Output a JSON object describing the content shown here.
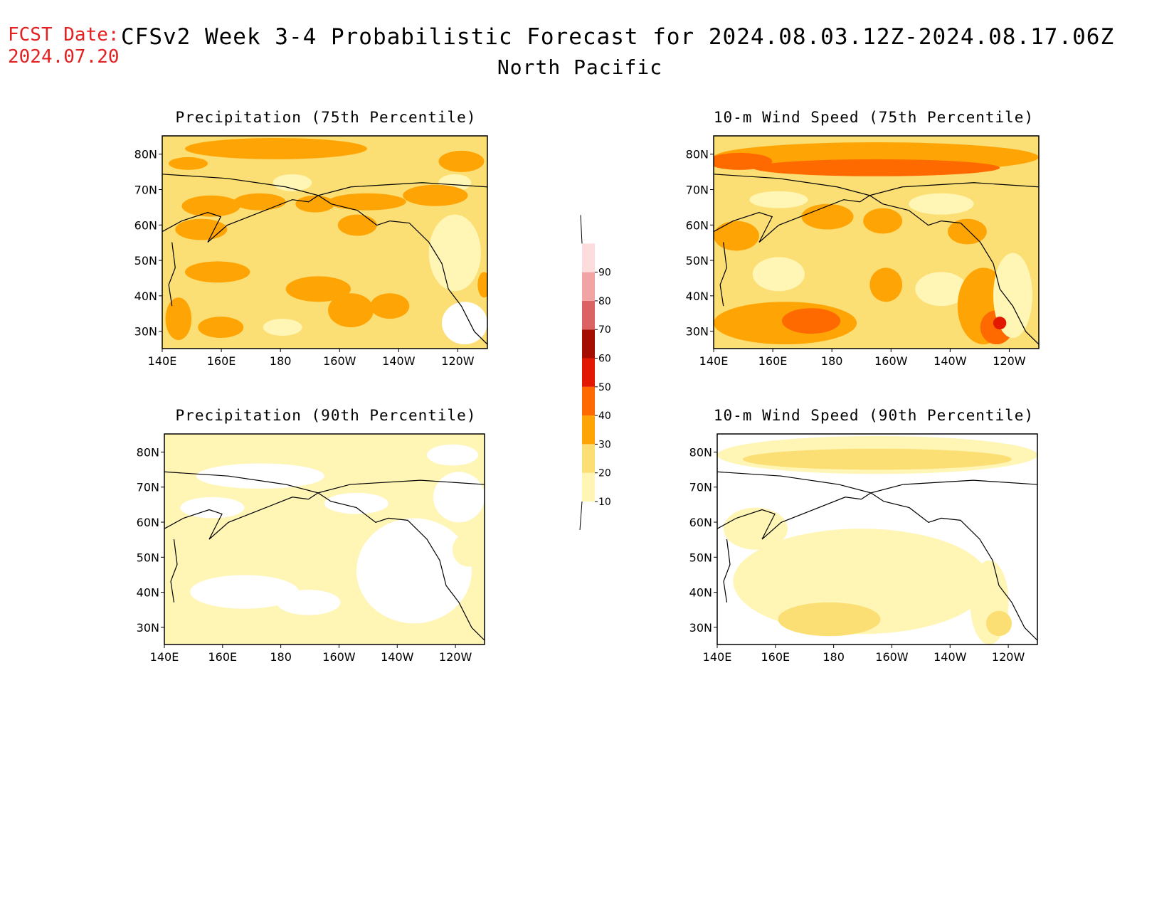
{
  "header": {
    "fcst_label": "FCST Date:",
    "fcst_date": "2024.07.20",
    "title": "CFSv2 Week 3-4 Probabilistic Forecast for 2024.08.03.12Z-2024.08.17.06Z",
    "region": "North Pacific"
  },
  "colors": {
    "c10": "#fff5b5",
    "c20": "#fcdf74",
    "c30": "#ffa405",
    "c40": "#ff6a00",
    "c50": "#e31800",
    "c60": "#a50d00",
    "c70": "#dd6262",
    "c80": "#f2a3a3",
    "c90": "#fcdcdc"
  },
  "colorbar": {
    "levels": [
      "10",
      "20",
      "30",
      "40",
      "50",
      "60",
      "70",
      "80",
      "90"
    ]
  },
  "panels": [
    {
      "id": "precip75",
      "title": "Precipitation (75th Percentile)",
      "lon_labels": [
        "140E",
        "160E",
        "180",
        "160W",
        "140W",
        "120W"
      ],
      "lat_labels": [
        "80N",
        "70N",
        "60N",
        "50N",
        "40N",
        "30N"
      ]
    },
    {
      "id": "wind75",
      "title": "10-m Wind Speed (75th Percentile)",
      "lon_labels": [
        "140E",
        "160E",
        "180",
        "160W",
        "140W",
        "120W"
      ],
      "lat_labels": [
        "80N",
        "70N",
        "60N",
        "50N",
        "40N",
        "30N"
      ]
    },
    {
      "id": "precip90",
      "title": "Precipitation (90th Percentile)",
      "lon_labels": [
        "140E",
        "160E",
        "180",
        "160W",
        "140W",
        "120W"
      ],
      "lat_labels": [
        "80N",
        "70N",
        "60N",
        "50N",
        "40N",
        "30N"
      ]
    },
    {
      "id": "wind90",
      "title": "10-m Wind Speed (90th Percentile)",
      "lon_labels": [
        "140E",
        "160E",
        "180",
        "160W",
        "140W",
        "120W"
      ],
      "lat_labels": [
        "80N",
        "70N",
        "60N",
        "50N",
        "40N",
        "30N"
      ]
    }
  ]
}
